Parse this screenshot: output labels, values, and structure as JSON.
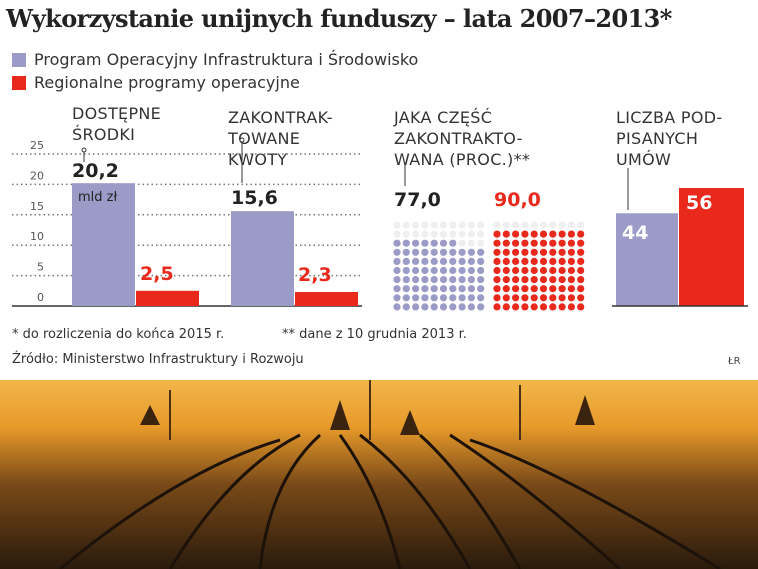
{
  "title": "Wykorzystanie unijnych funduszy – lata 2007–2013*",
  "legend": [
    {
      "label": "Program Operacyjny Infrastruktura i Środowisko",
      "color": "#9b9bc8"
    },
    {
      "label": "Regionalne programy operacyjne",
      "color": "#e8291c"
    }
  ],
  "chart_data": [
    {
      "type": "bar",
      "title": "",
      "categories": [
        "DOSTĘPNE ŚRODKI",
        "ZAKONTRAKTOWANE KWOTY"
      ],
      "unit": "mld zł",
      "ylim": [
        0,
        25
      ],
      "yticks": [
        "0",
        "5",
        "10",
        "15",
        "20",
        "25"
      ],
      "grid": true,
      "series": [
        {
          "name": "Program Operacyjny Infrastruktura i Środowisko",
          "values": [
            20.2,
            15.6
          ],
          "labels": [
            "20,2",
            "15,6"
          ]
        },
        {
          "name": "Regionalne programy operacyjne",
          "values": [
            2.5,
            2.3
          ],
          "labels": [
            "2,5",
            "2,3"
          ]
        }
      ]
    },
    {
      "type": "waffle",
      "title": "JAKA CZĘŚĆ ZAKONTRAKTOWANA (PROC.)**",
      "series": [
        {
          "name": "Program Operacyjny Infrastruktura i Środowisko",
          "value": 77.0,
          "label": "77,0"
        },
        {
          "name": "Regionalne programy operacyjne",
          "value": 90.0,
          "label": "90,0"
        }
      ]
    },
    {
      "type": "bar",
      "title": "LICZBA PODPISANYCH UMÓW",
      "series": [
        {
          "name": "Program Operacyjny Infrastruktura i Środowisko",
          "value": 44,
          "label": "44"
        },
        {
          "name": "Regionalne programy operacyjne",
          "value": 56,
          "label": "56"
        }
      ]
    }
  ],
  "headers": {
    "h1": [
      "DOSTĘPNE",
      "ŚRODKI"
    ],
    "h2": [
      "ZAKONTRAK-",
      "TOWANE",
      "KWOTY"
    ],
    "h3": [
      "JAKA CZĘŚĆ",
      "ZAKONTRAKTO-",
      "WANA (PROC.)**"
    ],
    "h4": [
      "LICZBA POD-",
      "PISANYCH",
      "UMÓW"
    ]
  },
  "unit_label": "mld zł",
  "notes": {
    "n1": "* do rozliczenia do końca 2015 r.",
    "n2": "** dane z 10 grudnia 2013 r.",
    "source": "Źródło: Ministerstwo Infrastruktury i Rozwoju",
    "credit": "ŁR"
  }
}
